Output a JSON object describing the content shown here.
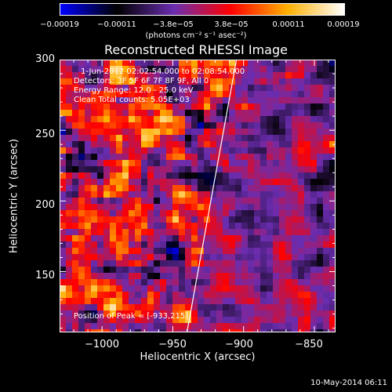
{
  "chart_data": {
    "type": "heatmap",
    "title": "Reconstructed RHESSI Image",
    "xlabel": "Heliocentric X (arcsec)",
    "ylabel": "Heliocentric Y (arcsec)",
    "xlim": [
      -1030,
      -835
    ],
    "ylim": [
      107,
      300
    ],
    "x_ticks": [
      -1000,
      -950,
      -900,
      -850
    ],
    "x_tick_labels": [
      "−1000",
      "−950",
      "−900",
      "−850"
    ],
    "y_ticks": [
      150,
      200,
      250,
      300
    ],
    "y_tick_labels": [
      "150",
      "200",
      "250",
      "300"
    ],
    "colorbar": {
      "range": [
        -0.00019,
        0.00019
      ],
      "tick_values": [
        -0.00019,
        -0.00011,
        -3.8e-05,
        3.8e-05,
        0.00011,
        0.00019
      ],
      "tick_labels": [
        "−0.00019",
        "−0.00011",
        "−3.8e−05",
        "3.8e−05",
        "0.00011",
        "0.00019"
      ],
      "units": "(photons cm⁻² s⁻¹ asec⁻²)",
      "colors": [
        "#0000ff",
        "#000000",
        "#6a2db0",
        "#ff0000",
        "#ffb000",
        "#ffffff"
      ]
    },
    "limb_line": {
      "x": [
        -940,
        -905
      ],
      "y": [
        107,
        300
      ]
    },
    "annotations": [
      "1-Jun-2012 02:02:54.000 to 02:08:54.000",
      "Detectors: 3F 5F 6F 7F 8F 9F, All 0",
      "Energy Range: 12.0 - 25.0 keV",
      "Clean    Total counts: 5.05E+03"
    ],
    "peak_label": "Position of Peak = [-933,215]",
    "grid": false,
    "legend": "none"
  },
  "footer": {
    "date": "10-May-2014 06:11"
  }
}
